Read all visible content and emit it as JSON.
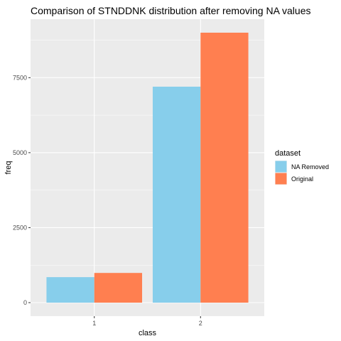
{
  "chart_data": {
    "type": "bar",
    "title": "Comparison of STNDDNK distribution after removing NA values",
    "xlabel": "class",
    "ylabel": "freq",
    "categories": [
      "1",
      "2"
    ],
    "series": [
      {
        "name": "NA Removed",
        "color": "#87CEEB",
        "values": [
          850,
          7200
        ]
      },
      {
        "name": "Original",
        "color": "#FF7F50",
        "values": [
          990,
          9000
        ]
      }
    ],
    "ylim": [
      -450,
      9450
    ],
    "y_ticks": [
      0,
      2500,
      5000,
      7500
    ],
    "y_tick_labels": [
      "0",
      "2500",
      "5000",
      "7500"
    ],
    "grid": true,
    "legend": {
      "title": "dataset",
      "position": "right"
    }
  }
}
